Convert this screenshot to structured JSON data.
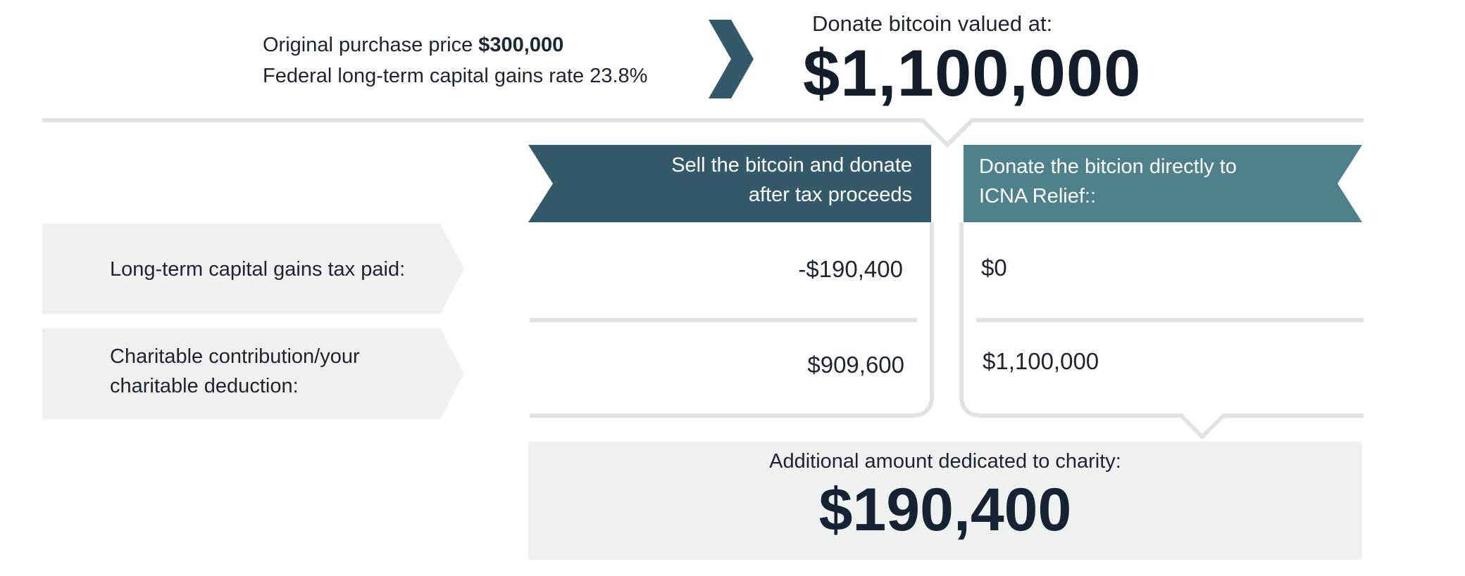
{
  "info": {
    "purchase_label": "Original purchase price",
    "purchase_value": "$300,000",
    "rate_line": "Federal long-term capital gains rate 23.8%"
  },
  "donate": {
    "label": "Donate bitcoin valued at:",
    "value": "$1,100,000"
  },
  "columns": {
    "sell": {
      "line1": "Sell the bitcoin and donate",
      "line2": "after tax proceeds"
    },
    "direct": {
      "line1": "Donate the bitcion  directly to",
      "line2": "ICNA Relief::"
    }
  },
  "rows": [
    {
      "label_line1": "Long-term capital gains tax paid:",
      "label_line2": "",
      "sell": "-$190,400",
      "direct": "$0"
    },
    {
      "label_line1": "Charitable contribution/your",
      "label_line2": "charitable deduction:",
      "sell": "$909,600",
      "direct": "$1,100,000"
    }
  ],
  "summary": {
    "label": "Additional amount dedicated to charity:",
    "value": "$190,400"
  },
  "colors": {
    "dark_teal": "#33596a",
    "light_teal": "#4f818d",
    "label_bg": "#eff1f0",
    "line": "#e1e3e2"
  }
}
